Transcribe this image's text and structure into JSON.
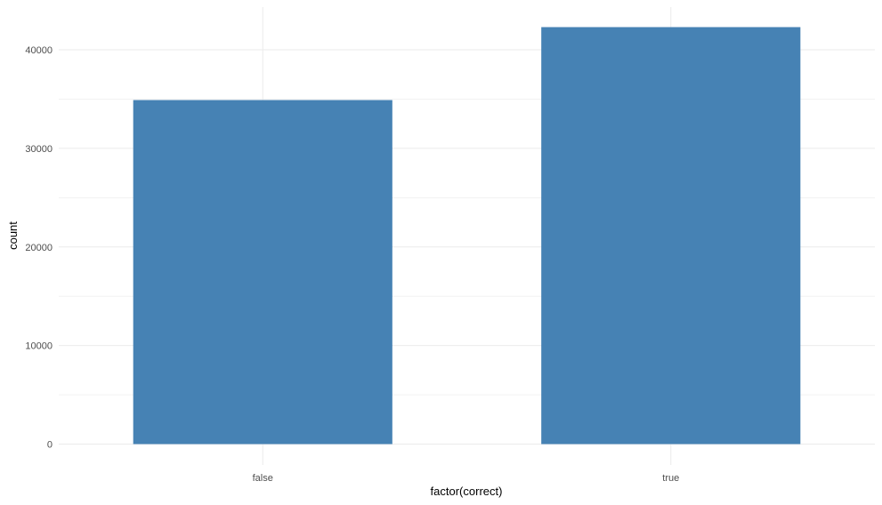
{
  "chart_data": {
    "type": "bar",
    "categories": [
      "false",
      "true"
    ],
    "values": [
      34900,
      42300
    ],
    "xlabel": "factor(correct)",
    "ylabel": "count",
    "ylim": [
      0,
      44400
    ],
    "yticks": [
      0,
      10000,
      20000,
      30000,
      40000
    ],
    "ytick_labels": [
      "0",
      "10000",
      "20000",
      "30000",
      "40000"
    ],
    "grid": true,
    "bar_color": "#4682b4",
    "grid_color": "#ebebeb"
  }
}
